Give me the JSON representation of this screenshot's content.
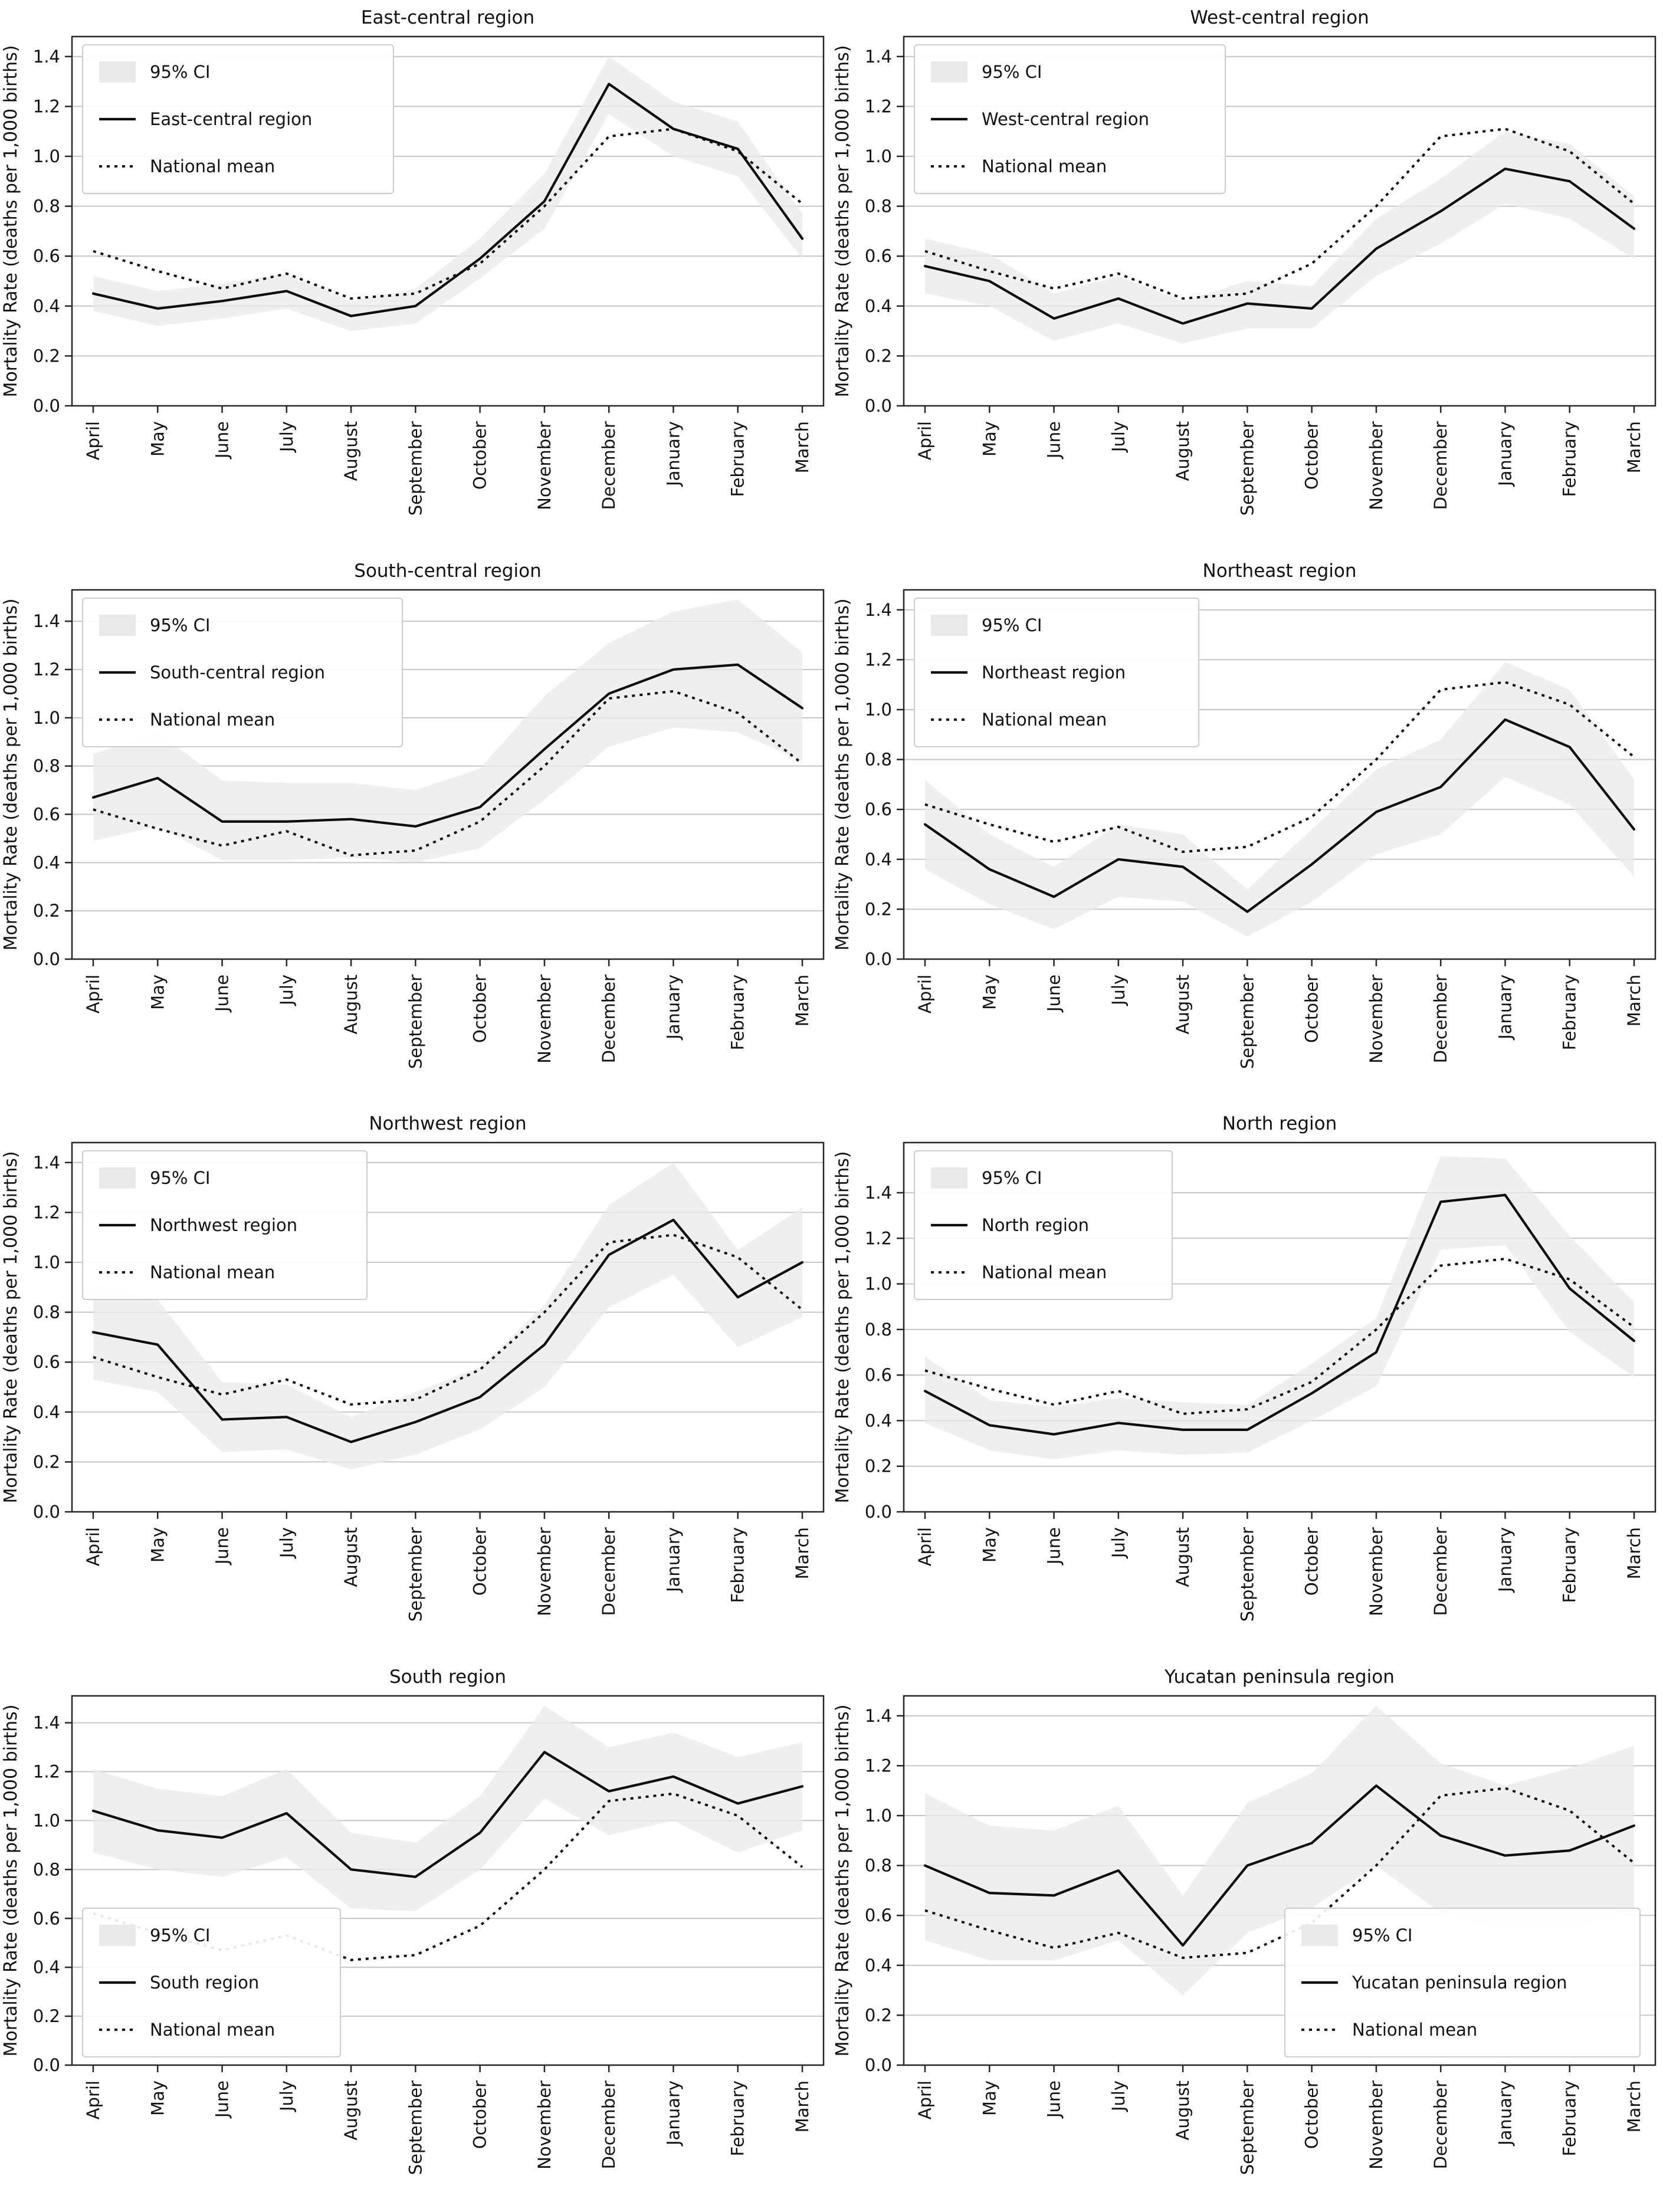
{
  "figure": {
    "ylabel": "Mortality Rate (deaths per 1,000 births)",
    "ytick_labels": [
      "0.0",
      "0.2",
      "0.4",
      "0.6",
      "0.8",
      "1.0",
      "1.2",
      "1.4"
    ],
    "legend_ci_label": "95% CI",
    "legend_national_label": "National mean"
  },
  "colors": {
    "line": "#0d0d0d",
    "national_line": "#0d0d0d",
    "ci_fill": "#e9e9e9",
    "grid": "#c6c6c6",
    "spine": "#262626",
    "text": "#111111",
    "legend_border": "#cccccc",
    "background": "#ffffff"
  },
  "chart_data": [
    {
      "type": "line",
      "title": "East-central region",
      "categories": [
        "April",
        "May",
        "June",
        "July",
        "August",
        "September",
        "October",
        "November",
        "December",
        "January",
        "February",
        "March"
      ],
      "xlabel": "",
      "ylabel": "Mortality Rate (deaths per 1,000 births)",
      "ylim": [
        0,
        1.48
      ],
      "grid": "horizontal",
      "legend_position": "upper-left",
      "legend_entries": [
        "95% CI",
        "East-central region",
        "National mean"
      ],
      "series": [
        {
          "name": "East-central region",
          "style": "solid",
          "values": [
            0.45,
            0.39,
            0.42,
            0.46,
            0.36,
            0.4,
            0.59,
            0.82,
            1.29,
            1.11,
            1.03,
            0.67
          ]
        },
        {
          "name": "National mean",
          "style": "dotted",
          "values": [
            0.62,
            0.54,
            0.47,
            0.53,
            0.43,
            0.45,
            0.57,
            0.8,
            1.08,
            1.11,
            1.02,
            0.81
          ]
        }
      ],
      "ci_low": [
        0.38,
        0.32,
        0.35,
        0.39,
        0.3,
        0.33,
        0.51,
        0.71,
        1.17,
        1.0,
        0.92,
        0.59
      ],
      "ci_high": [
        0.52,
        0.46,
        0.49,
        0.53,
        0.42,
        0.47,
        0.67,
        0.93,
        1.4,
        1.22,
        1.14,
        0.77
      ]
    },
    {
      "type": "line",
      "title": "West-central region",
      "categories": [
        "April",
        "May",
        "June",
        "July",
        "August",
        "September",
        "October",
        "November",
        "December",
        "January",
        "February",
        "March"
      ],
      "xlabel": "",
      "ylabel": "Mortality Rate (deaths per 1,000 births)",
      "ylim": [
        0,
        1.48
      ],
      "grid": "horizontal",
      "legend_position": "upper-left",
      "legend_entries": [
        "95% CI",
        "West-central region",
        "National mean"
      ],
      "series": [
        {
          "name": "West-central region",
          "style": "solid",
          "values": [
            0.56,
            0.5,
            0.35,
            0.43,
            0.33,
            0.41,
            0.39,
            0.63,
            0.78,
            0.95,
            0.9,
            0.71
          ]
        },
        {
          "name": "National mean",
          "style": "dotted",
          "values": [
            0.62,
            0.54,
            0.47,
            0.53,
            0.43,
            0.45,
            0.57,
            0.8,
            1.08,
            1.11,
            1.02,
            0.81
          ]
        }
      ],
      "ci_low": [
        0.45,
        0.4,
        0.26,
        0.33,
        0.25,
        0.31,
        0.31,
        0.52,
        0.65,
        0.81,
        0.75,
        0.59
      ],
      "ci_high": [
        0.67,
        0.61,
        0.45,
        0.52,
        0.42,
        0.5,
        0.48,
        0.75,
        0.91,
        1.1,
        1.05,
        0.84
      ]
    },
    {
      "type": "line",
      "title": "South-central region",
      "categories": [
        "April",
        "May",
        "June",
        "July",
        "August",
        "September",
        "October",
        "November",
        "December",
        "January",
        "February",
        "March"
      ],
      "xlabel": "",
      "ylabel": "Mortality Rate (deaths per 1,000 births)",
      "ylim": [
        0,
        1.53
      ],
      "grid": "horizontal",
      "legend_position": "upper-left",
      "legend_entries": [
        "95% CI",
        "South-central region",
        "National mean"
      ],
      "series": [
        {
          "name": "South-central region",
          "style": "solid",
          "values": [
            0.67,
            0.75,
            0.57,
            0.57,
            0.58,
            0.55,
            0.63,
            0.87,
            1.1,
            1.2,
            1.22,
            1.04
          ]
        },
        {
          "name": "National mean",
          "style": "dotted",
          "values": [
            0.62,
            0.54,
            0.47,
            0.53,
            0.43,
            0.45,
            0.57,
            0.8,
            1.08,
            1.11,
            1.02,
            0.81
          ]
        }
      ],
      "ci_low": [
        0.49,
        0.55,
        0.41,
        0.41,
        0.42,
        0.4,
        0.46,
        0.66,
        0.88,
        0.96,
        0.94,
        0.82
      ],
      "ci_high": [
        0.85,
        0.94,
        0.74,
        0.73,
        0.73,
        0.7,
        0.79,
        1.09,
        1.31,
        1.44,
        1.49,
        1.27
      ]
    },
    {
      "type": "line",
      "title": "Northeast region",
      "categories": [
        "April",
        "May",
        "June",
        "July",
        "August",
        "September",
        "October",
        "November",
        "December",
        "January",
        "February",
        "March"
      ],
      "xlabel": "",
      "ylabel": "Mortality Rate (deaths per 1,000 births)",
      "ylim": [
        0,
        1.48
      ],
      "grid": "horizontal",
      "legend_position": "upper-left",
      "legend_entries": [
        "95% CI",
        "Northeast region",
        "National mean"
      ],
      "series": [
        {
          "name": "Northeast region",
          "style": "solid",
          "values": [
            0.54,
            0.36,
            0.25,
            0.4,
            0.37,
            0.19,
            0.38,
            0.59,
            0.69,
            0.96,
            0.85,
            0.52
          ]
        },
        {
          "name": "National mean",
          "style": "dotted",
          "values": [
            0.62,
            0.54,
            0.47,
            0.53,
            0.43,
            0.45,
            0.57,
            0.8,
            1.08,
            1.11,
            1.02,
            0.81
          ]
        }
      ],
      "ci_low": [
        0.36,
        0.22,
        0.12,
        0.25,
        0.23,
        0.09,
        0.23,
        0.42,
        0.5,
        0.73,
        0.62,
        0.33
      ],
      "ci_high": [
        0.72,
        0.5,
        0.37,
        0.54,
        0.5,
        0.28,
        0.52,
        0.76,
        0.88,
        1.19,
        1.08,
        0.72
      ]
    },
    {
      "type": "line",
      "title": "Northwest region",
      "categories": [
        "April",
        "May",
        "June",
        "July",
        "August",
        "September",
        "October",
        "November",
        "December",
        "January",
        "February",
        "March"
      ],
      "xlabel": "",
      "ylabel": "Mortality Rate (deaths per 1,000 births)",
      "ylim": [
        0,
        1.48
      ],
      "grid": "horizontal",
      "legend_position": "upper-left",
      "legend_entries": [
        "95% CI",
        "Northwest region",
        "National mean"
      ],
      "series": [
        {
          "name": "Northwest region",
          "style": "solid",
          "values": [
            0.72,
            0.67,
            0.37,
            0.38,
            0.28,
            0.36,
            0.46,
            0.67,
            1.03,
            1.17,
            0.86,
            1.0
          ]
        },
        {
          "name": "National mean",
          "style": "dotted",
          "values": [
            0.62,
            0.54,
            0.47,
            0.53,
            0.43,
            0.45,
            0.57,
            0.8,
            1.08,
            1.11,
            1.02,
            0.81
          ]
        }
      ],
      "ci_low": [
        0.53,
        0.48,
        0.24,
        0.25,
        0.17,
        0.23,
        0.33,
        0.5,
        0.82,
        0.95,
        0.66,
        0.78
      ],
      "ci_high": [
        0.91,
        0.85,
        0.52,
        0.51,
        0.38,
        0.48,
        0.58,
        0.83,
        1.23,
        1.4,
        1.05,
        1.22
      ]
    },
    {
      "type": "line",
      "title": "North region",
      "categories": [
        "April",
        "May",
        "June",
        "July",
        "August",
        "September",
        "October",
        "November",
        "December",
        "January",
        "February",
        "March"
      ],
      "xlabel": "",
      "ylabel": "Mortality Rate (deaths per 1,000 births)",
      "ylim": [
        0,
        1.62
      ],
      "grid": "horizontal",
      "legend_position": "upper-left",
      "legend_entries": [
        "95% CI",
        "North region",
        "National mean"
      ],
      "series": [
        {
          "name": "North region",
          "style": "solid",
          "values": [
            0.53,
            0.38,
            0.34,
            0.39,
            0.36,
            0.36,
            0.52,
            0.7,
            1.36,
            1.39,
            0.98,
            0.75
          ]
        },
        {
          "name": "National mean",
          "style": "dotted",
          "values": [
            0.62,
            0.54,
            0.47,
            0.53,
            0.43,
            0.45,
            0.57,
            0.8,
            1.08,
            1.11,
            1.02,
            0.81
          ]
        }
      ],
      "ci_low": [
        0.39,
        0.27,
        0.23,
        0.27,
        0.25,
        0.26,
        0.4,
        0.55,
        1.15,
        1.17,
        0.79,
        0.59
      ],
      "ci_high": [
        0.68,
        0.49,
        0.46,
        0.5,
        0.48,
        0.47,
        0.65,
        0.85,
        1.56,
        1.55,
        1.21,
        0.92
      ]
    },
    {
      "type": "line",
      "title": "South region",
      "categories": [
        "April",
        "May",
        "June",
        "July",
        "August",
        "September",
        "October",
        "November",
        "December",
        "January",
        "February",
        "March"
      ],
      "xlabel": "",
      "ylabel": "Mortality Rate (deaths per 1,000 births)",
      "ylim": [
        0,
        1.51
      ],
      "grid": "horizontal",
      "legend_position": "lower-left",
      "legend_entries": [
        "95% CI",
        "South region",
        "National mean"
      ],
      "series": [
        {
          "name": "South region",
          "style": "solid",
          "values": [
            1.04,
            0.96,
            0.93,
            1.03,
            0.8,
            0.77,
            0.95,
            1.28,
            1.12,
            1.18,
            1.07,
            1.14
          ]
        },
        {
          "name": "National mean",
          "style": "dotted",
          "values": [
            0.62,
            0.54,
            0.47,
            0.53,
            0.43,
            0.45,
            0.57,
            0.8,
            1.08,
            1.11,
            1.02,
            0.81
          ]
        }
      ],
      "ci_low": [
        0.87,
        0.8,
        0.77,
        0.85,
        0.64,
        0.63,
        0.8,
        1.09,
        0.94,
        1.0,
        0.87,
        0.96
      ],
      "ci_high": [
        1.21,
        1.13,
        1.1,
        1.21,
        0.95,
        0.91,
        1.1,
        1.47,
        1.3,
        1.36,
        1.26,
        1.32
      ]
    },
    {
      "type": "line",
      "title": "Yucatan peninsula region",
      "categories": [
        "April",
        "May",
        "June",
        "July",
        "August",
        "September",
        "October",
        "November",
        "December",
        "January",
        "February",
        "March"
      ],
      "xlabel": "",
      "ylabel": "Mortality Rate (deaths per 1,000 births)",
      "ylim": [
        0,
        1.48
      ],
      "grid": "horizontal",
      "legend_position": "lower-right",
      "legend_entries": [
        "95% CI",
        "Yucatan peninsula region",
        "National mean"
      ],
      "series": [
        {
          "name": "Yucatan peninsula region",
          "style": "solid",
          "values": [
            0.8,
            0.69,
            0.68,
            0.78,
            0.48,
            0.8,
            0.89,
            1.12,
            0.92,
            0.84,
            0.86,
            0.96
          ]
        },
        {
          "name": "National mean",
          "style": "dotted",
          "values": [
            0.62,
            0.54,
            0.47,
            0.53,
            0.43,
            0.45,
            0.57,
            0.8,
            1.08,
            1.11,
            1.02,
            0.81
          ]
        }
      ],
      "ci_low": [
        0.5,
        0.42,
        0.42,
        0.5,
        0.28,
        0.53,
        0.63,
        0.8,
        0.61,
        0.54,
        0.54,
        0.62
      ],
      "ci_high": [
        1.09,
        0.96,
        0.94,
        1.04,
        0.68,
        1.05,
        1.17,
        1.44,
        1.21,
        1.12,
        1.19,
        1.28
      ]
    }
  ]
}
